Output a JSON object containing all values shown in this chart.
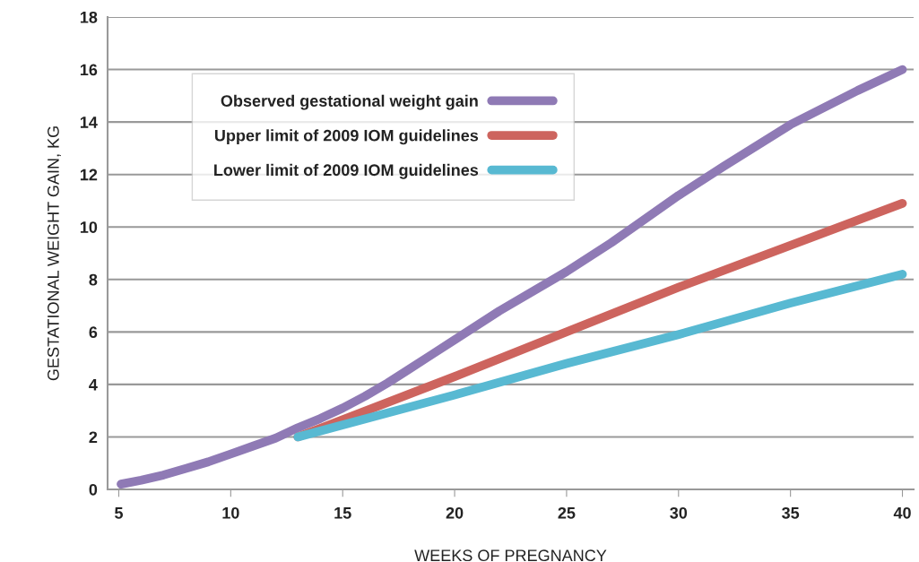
{
  "chart_data": {
    "type": "line",
    "xlabel": "WEEKS OF PREGNANCY",
    "ylabel": "GESTATIONAL WEIGHT GAIN, KG",
    "xlim": [
      4.5,
      40.5
    ],
    "xticks": [
      5,
      10,
      15,
      20,
      25,
      30,
      35,
      40
    ],
    "ylim": [
      0,
      18
    ],
    "yticks": [
      0,
      2,
      4,
      6,
      8,
      10,
      12,
      14,
      16,
      18
    ],
    "grid": "y",
    "legend": "top left",
    "marker": "none",
    "line_style": "solid",
    "series": [
      {
        "name": "Observed gestational weight gain",
        "color": "#8f7ab5",
        "x": [
          5.1,
          6,
          7,
          8,
          9,
          10,
          11,
          12,
          13,
          14,
          15,
          16,
          17,
          18,
          19,
          20,
          22,
          25,
          27,
          30,
          32,
          35,
          38,
          40
        ],
        "values": [
          0.2,
          0.35,
          0.55,
          0.8,
          1.05,
          1.35,
          1.65,
          1.95,
          2.35,
          2.7,
          3.1,
          3.55,
          4.05,
          4.6,
          5.15,
          5.7,
          6.8,
          8.3,
          9.4,
          11.2,
          12.3,
          13.9,
          15.2,
          16.0
        ]
      },
      {
        "name": "Upper limit of 2009 IOM guidelines",
        "color": "#cd645e",
        "x": [
          13,
          20,
          25,
          30,
          35,
          40
        ],
        "values": [
          2.0,
          4.3,
          6.0,
          7.7,
          9.3,
          10.9
        ]
      },
      {
        "name": "Lower limit of 2009 IOM guidelines",
        "color": "#58b9d2",
        "x": [
          13,
          20,
          25,
          30,
          35,
          40
        ],
        "values": [
          2.0,
          3.6,
          4.8,
          5.9,
          7.1,
          8.2
        ]
      }
    ]
  }
}
